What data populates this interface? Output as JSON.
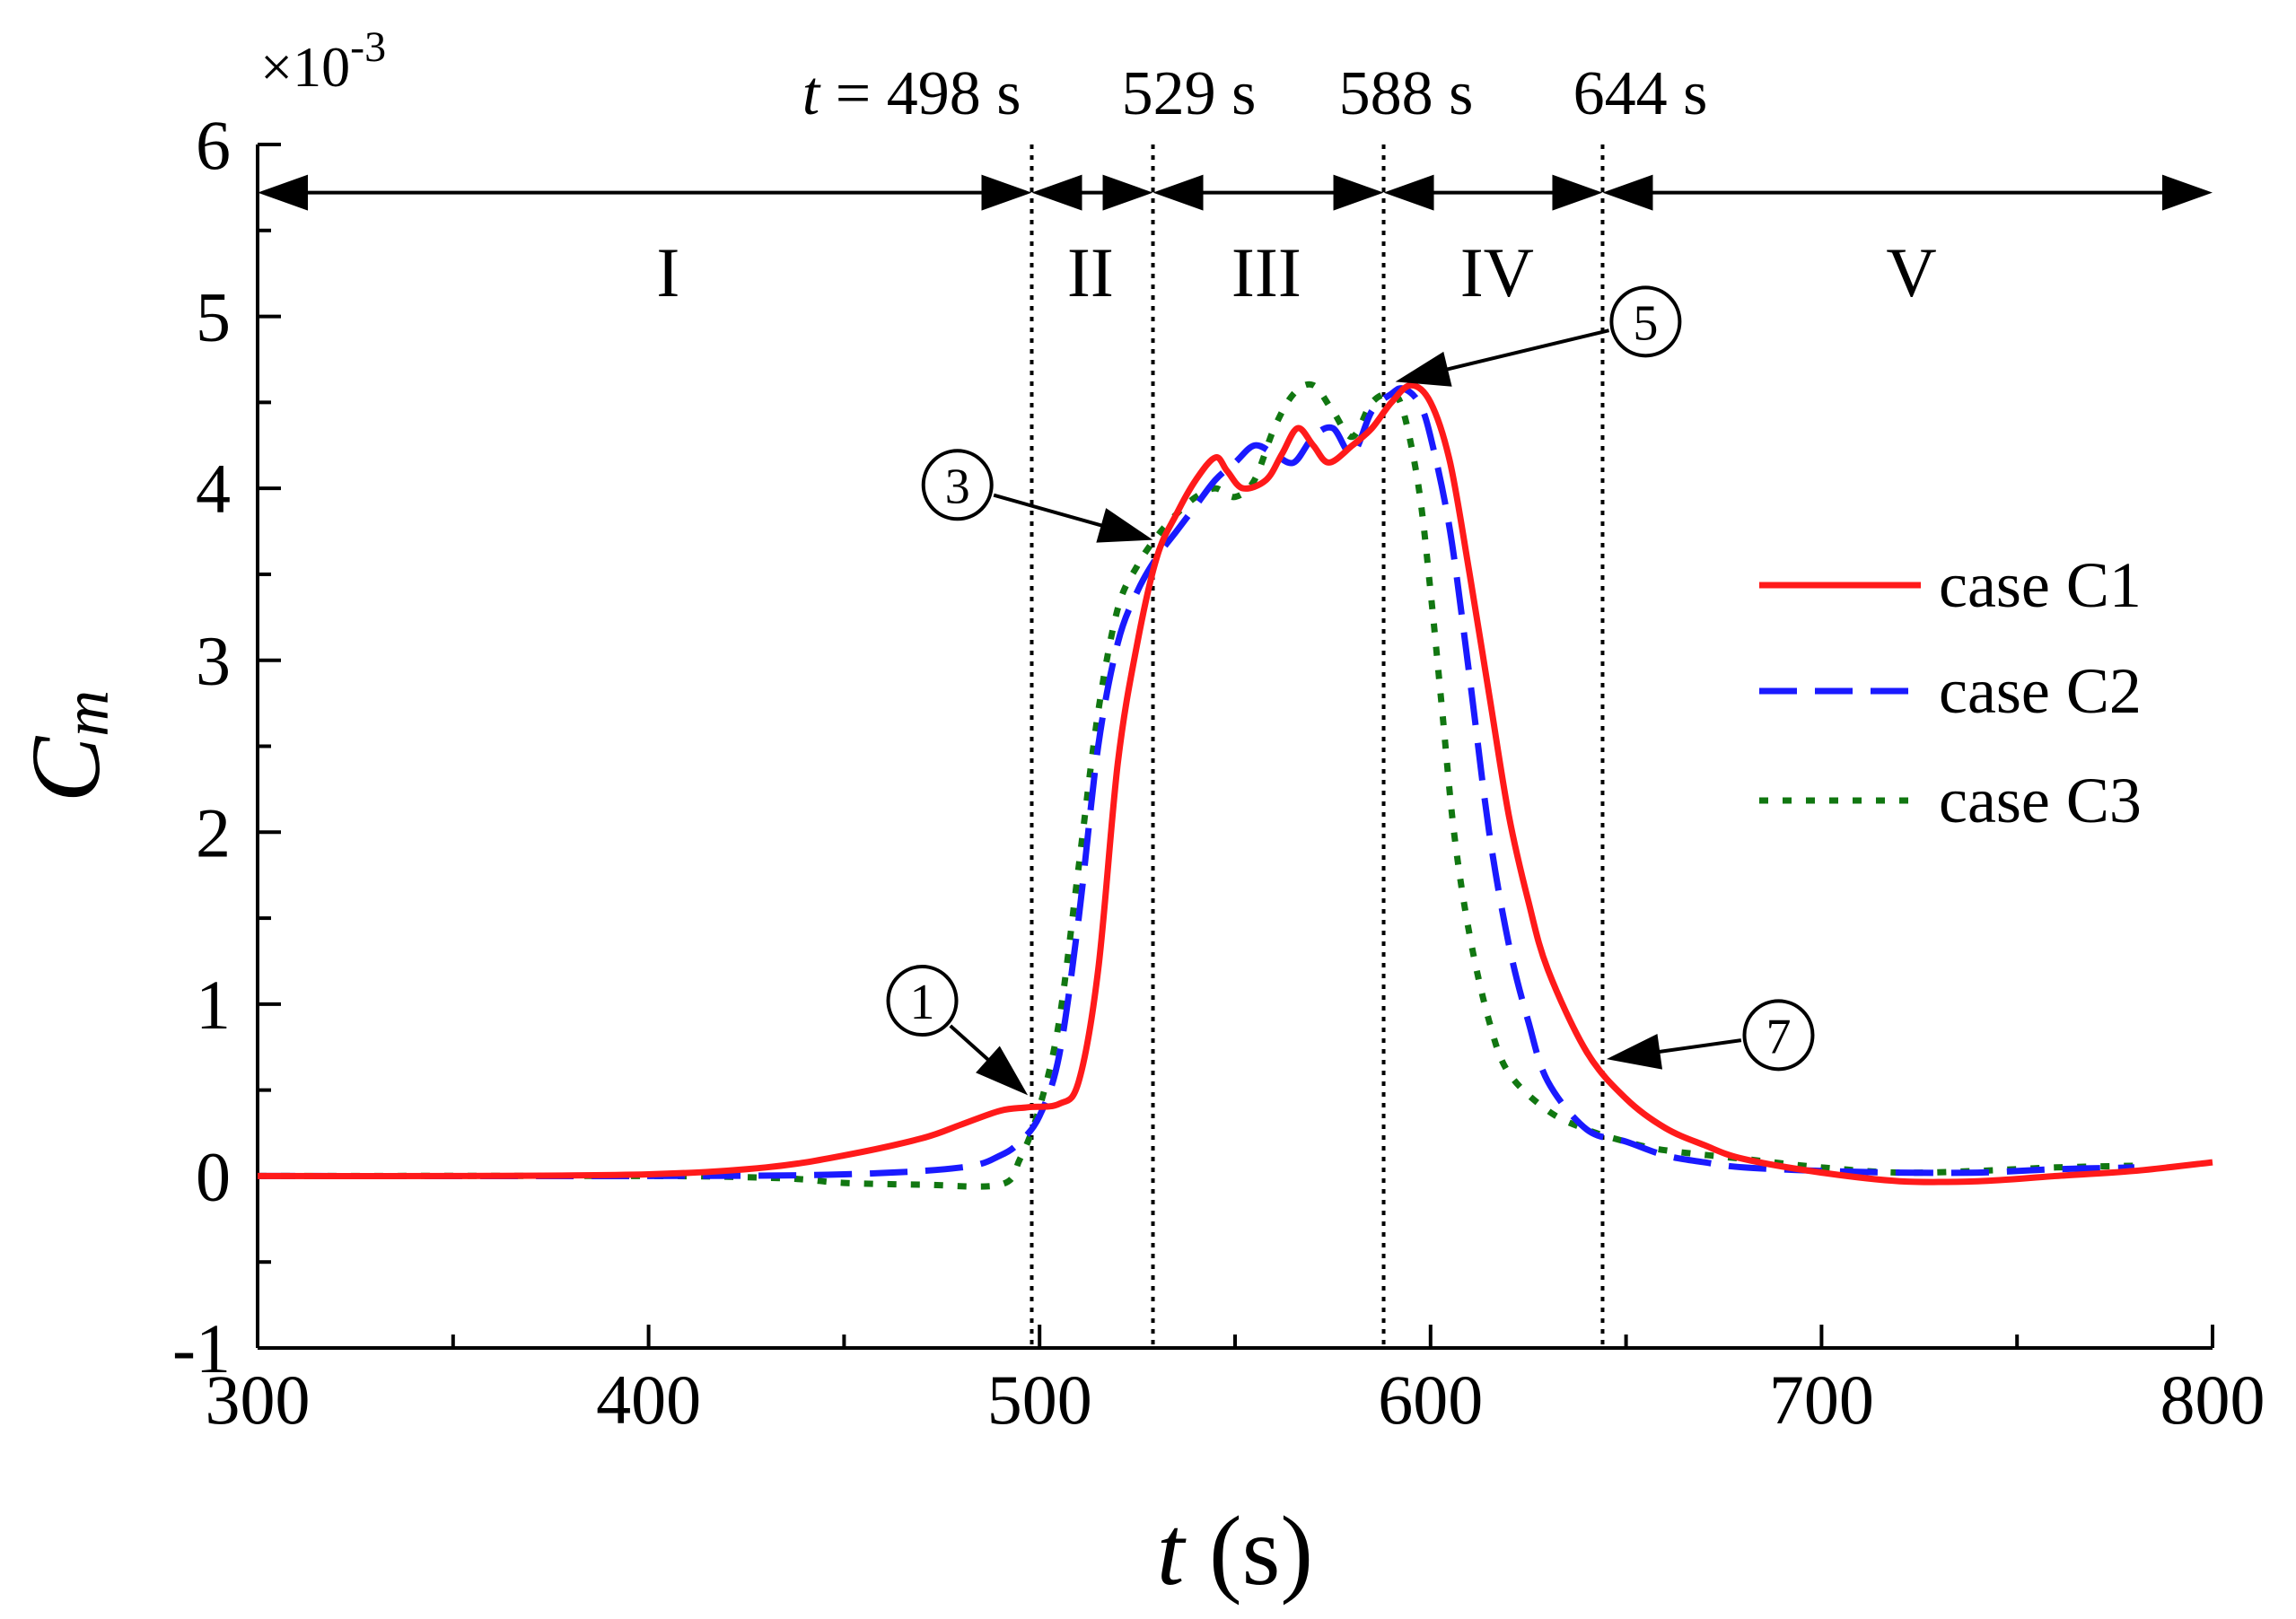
{
  "chart_data": {
    "type": "line",
    "xlabel_var": "t",
    "xlabel_unit": " (s)",
    "ylabel_var": "C",
    "ylabel_sub": "m",
    "y_scale_label": "×10",
    "y_scale_exp": "-3",
    "xlim": [
      300,
      800
    ],
    "ylim": [
      -1,
      6
    ],
    "xticks": [
      300,
      400,
      500,
      600,
      700,
      800
    ],
    "yticks": [
      -1,
      0,
      1,
      2,
      3,
      4,
      5,
      6
    ],
    "grid": false,
    "legend_position": "right",
    "series": [
      {
        "name": "case C1",
        "label": "case C1",
        "color": "#ff1a1a",
        "style": "solid",
        "x": [
          300,
          350,
          400,
          430,
          450,
          470,
          480,
          490,
          497,
          505,
          510,
          515,
          520,
          525,
          530,
          535,
          540,
          545,
          548,
          552,
          558,
          562,
          566,
          570,
          574,
          580,
          585,
          590,
          595,
          600,
          605,
          610,
          615,
          620,
          625,
          630,
          640,
          650,
          660,
          670,
          680,
          700,
          720,
          740,
          760,
          780,
          800
        ],
        "y": [
          0,
          0,
          0.01,
          0.05,
          0.12,
          0.22,
          0.3,
          0.38,
          0.4,
          0.42,
          0.55,
          1.2,
          2.4,
          3.1,
          3.6,
          3.85,
          4.05,
          4.18,
          4.1,
          4.0,
          4.05,
          4.2,
          4.35,
          4.25,
          4.15,
          4.25,
          4.35,
          4.5,
          4.6,
          4.5,
          4.15,
          3.5,
          2.8,
          2.1,
          1.6,
          1.2,
          0.72,
          0.45,
          0.28,
          0.18,
          0.1,
          0.02,
          -0.03,
          -0.03,
          0,
          0.03,
          0.08
        ]
      },
      {
        "name": "case C2",
        "label": "case C2",
        "color": "#1a1aff",
        "style": "dashed",
        "x": [
          300,
          400,
          450,
          480,
          490,
          495,
          500,
          505,
          510,
          515,
          520,
          525,
          530,
          535,
          540,
          545,
          550,
          555,
          560,
          565,
          570,
          575,
          580,
          585,
          590,
          593,
          597,
          600,
          605,
          610,
          615,
          620,
          625,
          630,
          640,
          650,
          660,
          670,
          680,
          700,
          720,
          740,
          760,
          780
        ],
        "y": [
          0,
          0,
          0.01,
          0.05,
          0.12,
          0.2,
          0.35,
          0.7,
          1.5,
          2.5,
          3.1,
          3.4,
          3.6,
          3.75,
          3.9,
          4.05,
          4.15,
          4.25,
          4.2,
          4.15,
          4.3,
          4.35,
          4.2,
          4.45,
          4.55,
          4.58,
          4.5,
          4.3,
          3.75,
          2.9,
          2.0,
          1.35,
          0.9,
          0.55,
          0.27,
          0.2,
          0.12,
          0.08,
          0.05,
          0.03,
          0.02,
          0.02,
          0.04,
          0.05
        ]
      },
      {
        "name": "case C3",
        "label": "case C3",
        "color": "#117711",
        "style": "dotted",
        "x": [
          300,
          400,
          430,
          440,
          450,
          470,
          490,
          495,
          500,
          505,
          510,
          515,
          520,
          525,
          530,
          535,
          540,
          545,
          550,
          555,
          560,
          565,
          570,
          575,
          580,
          585,
          590,
          593,
          597,
          600,
          603,
          606,
          610,
          615,
          620,
          630,
          640,
          650,
          660,
          680,
          700,
          720,
          740,
          760,
          780
        ],
        "y": [
          0,
          0,
          -0.01,
          -0.02,
          -0.04,
          -0.05,
          -0.05,
          0.1,
          0.4,
          0.9,
          1.8,
          2.7,
          3.3,
          3.55,
          3.72,
          3.85,
          3.95,
          4.0,
          3.95,
          4.05,
          4.35,
          4.55,
          4.6,
          4.45,
          4.3,
          4.5,
          4.55,
          4.45,
          4.0,
          3.4,
          2.7,
          2.0,
          1.4,
          0.9,
          0.6,
          0.38,
          0.27,
          0.2,
          0.15,
          0.1,
          0.05,
          0.02,
          0.03,
          0.05,
          0.06
        ]
      }
    ],
    "phase_lines": [
      {
        "t": 498,
        "label": "498 s"
      },
      {
        "t": 529,
        "label": "529 s"
      },
      {
        "t": 588,
        "label": "588 s"
      },
      {
        "t": 644,
        "label": "644 s"
      }
    ],
    "phase_time_prefix": "t",
    "phase_time_eq": " = ",
    "phase_regions": [
      {
        "label": "I",
        "t": 405
      },
      {
        "label": "II",
        "t": 513
      },
      {
        "label": "III",
        "t": 558
      },
      {
        "label": "IV",
        "t": 617
      },
      {
        "label": "V",
        "t": 723
      }
    ],
    "phase_arrow_y": 5.72,
    "annotations": [
      {
        "label": "1",
        "symbol": "①",
        "marker_x": 470,
        "marker_y": 1.02,
        "target_x": 497,
        "target_y": 0.47
      },
      {
        "label": "3",
        "symbol": "③",
        "marker_x": 479,
        "marker_y": 4.02,
        "target_x": 529,
        "target_y": 3.7
      },
      {
        "label": "5",
        "symbol": "⑤",
        "marker_x": 655,
        "marker_y": 4.97,
        "target_x": 591,
        "target_y": 4.62
      },
      {
        "label": "7",
        "symbol": "⑦",
        "marker_x": 689,
        "marker_y": 0.82,
        "target_x": 645,
        "target_y": 0.68
      }
    ]
  }
}
